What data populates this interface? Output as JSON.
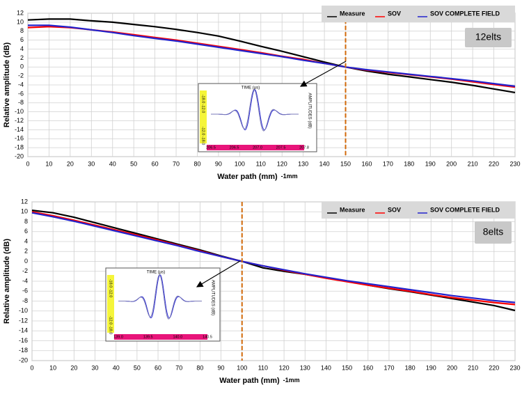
{
  "chart_data": [
    {
      "type": "line",
      "y_label": "Relative amplitude (dB)",
      "x_label": "Water path (mm)",
      "x_label_note": "-1mm",
      "annotation": "12elts",
      "reference_x": 150,
      "grid": true,
      "legend": "top-right",
      "x": [
        0,
        10,
        20,
        30,
        40,
        50,
        60,
        70,
        80,
        90,
        100,
        110,
        120,
        130,
        140,
        150,
        160,
        170,
        180,
        190,
        200,
        210,
        220,
        230
      ],
      "series": [
        {
          "name": "Measure",
          "color": "#000000",
          "values": [
            10.5,
            10.7,
            10.7,
            10.3,
            10.0,
            9.5,
            9.0,
            8.4,
            7.7,
            6.9,
            5.8,
            4.6,
            3.5,
            2.3,
            1.1,
            0,
            -0.9,
            -1.6,
            -2.2,
            -2.8,
            -3.4,
            -4.1,
            -4.9,
            -5.7
          ]
        },
        {
          "name": "SOV",
          "color": "#ff0000",
          "values": [
            8.8,
            9.0,
            8.8,
            8.3,
            7.8,
            7.2,
            6.6,
            6.0,
            5.3,
            4.6,
            3.9,
            3.2,
            2.4,
            1.7,
            0.8,
            0,
            -0.7,
            -1.2,
            -1.7,
            -2.2,
            -2.7,
            -3.3,
            -3.9,
            -4.5
          ]
        },
        {
          "name": "SOV COMPLETE FIELD",
          "color": "#2222cc",
          "values": [
            9.3,
            9.3,
            8.9,
            8.3,
            7.7,
            7.0,
            6.4,
            5.8,
            5.1,
            4.4,
            3.7,
            3.0,
            2.3,
            1.5,
            0.8,
            0,
            -0.6,
            -1.1,
            -1.6,
            -2.1,
            -2.6,
            -3.1,
            -3.7,
            -4.3
          ]
        }
      ],
      "xlim": [
        0,
        230
      ],
      "xticks": [
        0,
        10,
        20,
        30,
        40,
        50,
        60,
        70,
        80,
        90,
        100,
        110,
        120,
        130,
        140,
        150,
        160,
        170,
        180,
        190,
        200,
        210,
        220,
        230
      ],
      "ylim": [
        -20,
        12
      ],
      "yticks": [
        -20,
        -18,
        -16,
        -14,
        -12,
        -10,
        -8,
        -6,
        -4,
        -2,
        0,
        2,
        4,
        6,
        8,
        10,
        12
      ],
      "inset": {
        "title": "TIME (µs)",
        "side_label": "AMPLITUDES (dB)",
        "y_labels": [
          "-18.0",
          "-12.0"
        ],
        "y_labels_low": [
          "-12.0",
          "-18.0"
        ],
        "x_labels": [
          "206.5",
          "206.5",
          "207.0",
          "207.5",
          "207.8"
        ]
      }
    },
    {
      "type": "line",
      "y_label": "Relative amplitude (dB)",
      "x_label": "Water path (mm)",
      "x_label_note": "-1mm",
      "annotation": "8elts",
      "reference_x": 100,
      "grid": true,
      "legend": "top-right",
      "x": [
        0,
        10,
        20,
        30,
        40,
        50,
        60,
        70,
        80,
        90,
        100,
        110,
        120,
        130,
        140,
        150,
        160,
        170,
        180,
        190,
        200,
        210,
        220,
        230
      ],
      "series": [
        {
          "name": "Measure",
          "color": "#000000",
          "values": [
            10.3,
            9.8,
            8.9,
            7.8,
            6.7,
            5.6,
            4.5,
            3.4,
            2.3,
            1.1,
            0,
            -1.3,
            -2.0,
            -2.6,
            -3.3,
            -4.0,
            -4.8,
            -5.5,
            -6.1,
            -6.8,
            -7.5,
            -8.2,
            -8.9,
            -9.9
          ]
        },
        {
          "name": "SOV",
          "color": "#ff0000",
          "values": [
            10.0,
            9.2,
            8.3,
            7.3,
            6.3,
            5.3,
            4.3,
            3.2,
            2.1,
            1.0,
            0,
            -0.9,
            -1.8,
            -2.6,
            -3.4,
            -4.1,
            -4.8,
            -5.4,
            -6.0,
            -6.7,
            -7.3,
            -7.8,
            -8.3,
            -8.7
          ]
        },
        {
          "name": "SOV COMPLETE FIELD",
          "color": "#2222cc",
          "values": [
            9.8,
            9.0,
            8.1,
            7.1,
            6.1,
            5.1,
            4.1,
            3.1,
            2.0,
            1.0,
            0,
            -0.9,
            -1.7,
            -2.5,
            -3.2,
            -3.9,
            -4.5,
            -5.1,
            -5.7,
            -6.3,
            -6.9,
            -7.4,
            -7.9,
            -8.3
          ]
        }
      ],
      "xlim": [
        0,
        230
      ],
      "xticks": [
        0,
        10,
        20,
        30,
        40,
        50,
        60,
        70,
        80,
        90,
        100,
        110,
        120,
        130,
        140,
        150,
        160,
        170,
        180,
        190,
        200,
        210,
        220,
        230
      ],
      "ylim": [
        -20,
        12
      ],
      "yticks": [
        -20,
        -18,
        -16,
        -14,
        -12,
        -10,
        -8,
        -6,
        -4,
        -2,
        0,
        2,
        4,
        6,
        8,
        10,
        12
      ],
      "inset": {
        "title": "TIME (µs)",
        "side_label": "AMPLITUDES (dB)",
        "y_labels": [
          "-18.0",
          "-12.0"
        ],
        "y_labels_low": [
          "-12.0",
          "-18.0"
        ],
        "x_labels": [
          "139.0",
          "139.5",
          "140.0",
          "140.5"
        ]
      }
    }
  ]
}
